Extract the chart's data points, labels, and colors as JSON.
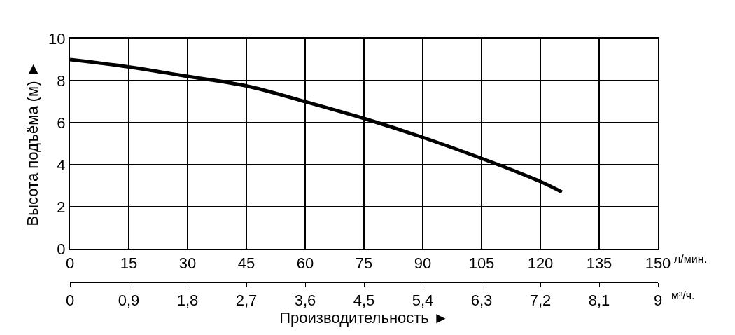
{
  "chart_data": {
    "type": "line",
    "xlabel": "Производительность ►",
    "ylabel": "Высота подъёма (м) ►",
    "annotations": [
      "л/мин.",
      "м³/ч."
    ],
    "x": [
      0,
      15,
      30,
      45,
      60,
      75,
      90,
      105,
      120,
      125.5
    ],
    "series": [
      {
        "color": "#000000",
        "values": [
          9.0,
          8.65,
          8.2,
          7.75,
          7.0,
          6.2,
          5.3,
          4.3,
          3.2,
          2.7
        ]
      }
    ],
    "xlim": [
      0,
      150
    ],
    "xticks": [
      0,
      15,
      30,
      45,
      60,
      75,
      90,
      105,
      120,
      135,
      150
    ],
    "ylim": [
      0,
      10
    ],
    "yticks": [
      0,
      2,
      4,
      6,
      8,
      10
    ],
    "x2lim": [
      0,
      9
    ],
    "x2ticks": [
      0,
      {
        "value": 0.9,
        "label": "0,9"
      },
      {
        "value": 1.8,
        "label": "1,8"
      },
      {
        "value": 2.7,
        "label": "2,7"
      },
      {
        "value": 3.6,
        "label": "3,6"
      },
      {
        "value": 4.5,
        "label": "4,5"
      },
      {
        "value": 5.4,
        "label": "5,4"
      },
      {
        "value": 6.3,
        "label": "6,3"
      },
      {
        "value": 7.2,
        "label": "7,2"
      },
      {
        "value": 8.1,
        "label": "8,1"
      },
      9
    ],
    "grid": true,
    "legend": false,
    "marker": "none",
    "line_style": "solid"
  }
}
